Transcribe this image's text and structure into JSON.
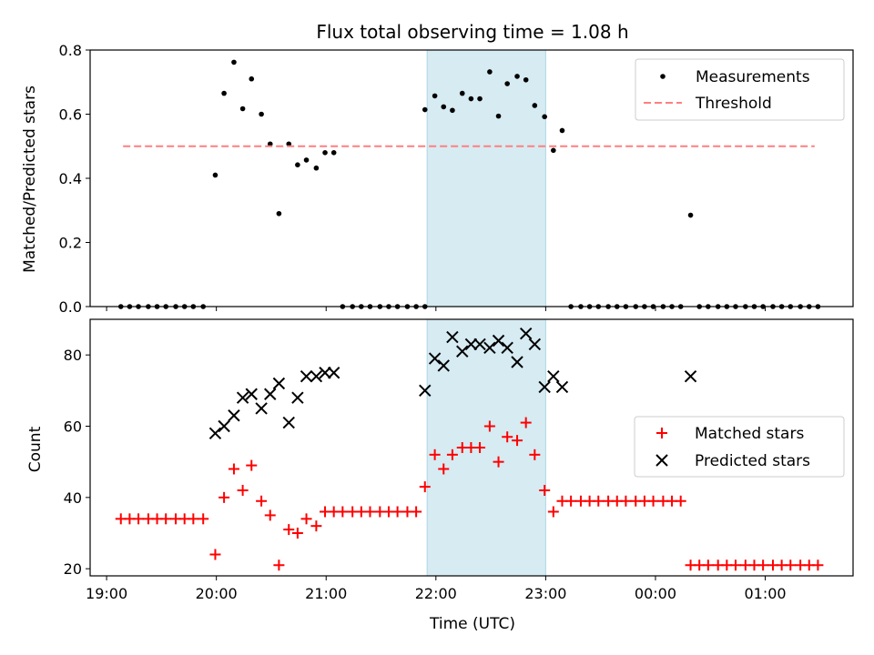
{
  "chart_data": {
    "type": "scatter",
    "title": "Flux total observing time = 1.08 h",
    "xlabel": "Time (UTC)",
    "x_unit": "hours UTC (times after midnight written as 24+h)",
    "x_range": [
      18.85,
      25.8
    ],
    "x_tick_values": [
      19,
      20,
      21,
      22,
      23,
      24,
      25
    ],
    "x_tick_labels": [
      "19:00",
      "20:00",
      "21:00",
      "22:00",
      "23:00",
      "00:00",
      "01:00"
    ],
    "highlight_span": {
      "start": 21.92,
      "end": 23.0,
      "color": "#add8e6",
      "opacity": 0.5
    },
    "panels": [
      {
        "ylabel": "Matched/Predicted stars",
        "ylim": [
          0,
          0.8
        ],
        "y_tick_values": [
          0.0,
          0.2,
          0.4,
          0.6,
          0.8
        ],
        "y_tick_labels": [
          "0.0",
          "0.2",
          "0.4",
          "0.6",
          "0.8"
        ],
        "legend_position": "top-right",
        "series": [
          {
            "name": "Measurements",
            "kind": "dot",
            "color": "#000000",
            "points": [
              [
                19.13,
                0.0
              ],
              [
                19.21,
                0.0
              ],
              [
                19.29,
                0.0
              ],
              [
                19.38,
                0.0
              ],
              [
                19.46,
                0.0
              ],
              [
                19.54,
                0.0
              ],
              [
                19.63,
                0.0
              ],
              [
                19.71,
                0.0
              ],
              [
                19.79,
                0.0
              ],
              [
                19.88,
                0.0
              ],
              [
                19.99,
                0.41
              ],
              [
                20.07,
                0.665
              ],
              [
                20.16,
                0.762
              ],
              [
                20.24,
                0.617
              ],
              [
                20.32,
                0.71
              ],
              [
                20.41,
                0.6
              ],
              [
                20.49,
                0.507
              ],
              [
                20.57,
                0.29
              ],
              [
                20.66,
                0.507
              ],
              [
                20.74,
                0.442
              ],
              [
                20.82,
                0.457
              ],
              [
                20.91,
                0.432
              ],
              [
                20.99,
                0.48
              ],
              [
                21.07,
                0.48
              ],
              [
                21.15,
                0.0
              ],
              [
                21.24,
                0.0
              ],
              [
                21.32,
                0.0
              ],
              [
                21.4,
                0.0
              ],
              [
                21.49,
                0.0
              ],
              [
                21.57,
                0.0
              ],
              [
                21.65,
                0.0
              ],
              [
                21.74,
                0.0
              ],
              [
                21.82,
                0.0
              ],
              [
                21.9,
                0.0
              ],
              [
                21.9,
                0.614
              ],
              [
                21.99,
                0.657
              ],
              [
                22.07,
                0.623
              ],
              [
                22.15,
                0.612
              ],
              [
                22.24,
                0.665
              ],
              [
                22.32,
                0.648
              ],
              [
                22.4,
                0.648
              ],
              [
                22.49,
                0.732
              ],
              [
                22.57,
                0.594
              ],
              [
                22.65,
                0.695
              ],
              [
                22.74,
                0.718
              ],
              [
                22.82,
                0.707
              ],
              [
                22.9,
                0.627
              ],
              [
                22.99,
                0.592
              ],
              [
                23.07,
                0.487
              ],
              [
                23.15,
                0.549
              ],
              [
                23.23,
                0.0
              ],
              [
                23.32,
                0.0
              ],
              [
                23.4,
                0.0
              ],
              [
                23.48,
                0.0
              ],
              [
                23.57,
                0.0
              ],
              [
                23.65,
                0.0
              ],
              [
                23.73,
                0.0
              ],
              [
                23.82,
                0.0
              ],
              [
                23.9,
                0.0
              ],
              [
                23.98,
                0.0
              ],
              [
                24.07,
                0.0
              ],
              [
                24.15,
                0.0
              ],
              [
                24.23,
                0.0
              ],
              [
                24.32,
                0.285
              ],
              [
                24.4,
                0.0
              ],
              [
                24.48,
                0.0
              ],
              [
                24.57,
                0.0
              ],
              [
                24.65,
                0.0
              ],
              [
                24.73,
                0.0
              ],
              [
                24.82,
                0.0
              ],
              [
                24.9,
                0.0
              ],
              [
                24.98,
                0.0
              ],
              [
                25.07,
                0.0
              ],
              [
                25.15,
                0.0
              ],
              [
                25.23,
                0.0
              ],
              [
                25.32,
                0.0
              ],
              [
                25.4,
                0.0
              ],
              [
                25.48,
                0.0
              ]
            ]
          },
          {
            "name": "Threshold",
            "kind": "dashed-line",
            "color": "#ff7f7f",
            "points": [
              [
                19.15,
                0.5
              ],
              [
                25.45,
                0.5
              ]
            ]
          }
        ]
      },
      {
        "ylabel": "Count",
        "ylim": [
          18,
          90
        ],
        "y_tick_values": [
          20,
          40,
          60,
          80
        ],
        "y_tick_labels": [
          "20",
          "40",
          "60",
          "80"
        ],
        "legend_position": "center-right",
        "series": [
          {
            "name": "Matched stars",
            "kind": "plus",
            "color": "#ff0000",
            "points": [
              [
                19.13,
                34
              ],
              [
                19.21,
                34
              ],
              [
                19.29,
                34
              ],
              [
                19.38,
                34
              ],
              [
                19.46,
                34
              ],
              [
                19.54,
                34
              ],
              [
                19.63,
                34
              ],
              [
                19.71,
                34
              ],
              [
                19.79,
                34
              ],
              [
                19.88,
                34
              ],
              [
                19.99,
                24
              ],
              [
                20.07,
                40
              ],
              [
                20.16,
                48
              ],
              [
                20.24,
                42
              ],
              [
                20.32,
                49
              ],
              [
                20.41,
                39
              ],
              [
                20.49,
                35
              ],
              [
                20.57,
                21
              ],
              [
                20.66,
                31
              ],
              [
                20.74,
                30
              ],
              [
                20.82,
                34
              ],
              [
                20.91,
                32
              ],
              [
                20.99,
                36
              ],
              [
                21.07,
                36
              ],
              [
                21.15,
                36
              ],
              [
                21.24,
                36
              ],
              [
                21.32,
                36
              ],
              [
                21.4,
                36
              ],
              [
                21.49,
                36
              ],
              [
                21.57,
                36
              ],
              [
                21.65,
                36
              ],
              [
                21.74,
                36
              ],
              [
                21.82,
                36
              ],
              [
                21.9,
                43
              ],
              [
                21.99,
                52
              ],
              [
                22.07,
                48
              ],
              [
                22.15,
                52
              ],
              [
                22.24,
                54
              ],
              [
                22.32,
                54
              ],
              [
                22.4,
                54
              ],
              [
                22.49,
                60
              ],
              [
                22.57,
                50
              ],
              [
                22.65,
                57
              ],
              [
                22.74,
                56
              ],
              [
                22.82,
                61
              ],
              [
                22.9,
                52
              ],
              [
                22.99,
                42
              ],
              [
                23.07,
                36
              ],
              [
                23.15,
                39
              ],
              [
                23.23,
                39
              ],
              [
                23.32,
                39
              ],
              [
                23.4,
                39
              ],
              [
                23.48,
                39
              ],
              [
                23.57,
                39
              ],
              [
                23.65,
                39
              ],
              [
                23.73,
                39
              ],
              [
                23.82,
                39
              ],
              [
                23.9,
                39
              ],
              [
                23.98,
                39
              ],
              [
                24.07,
                39
              ],
              [
                24.15,
                39
              ],
              [
                24.23,
                39
              ],
              [
                24.32,
                21
              ],
              [
                24.4,
                21
              ],
              [
                24.48,
                21
              ],
              [
                24.57,
                21
              ],
              [
                24.65,
                21
              ],
              [
                24.73,
                21
              ],
              [
                24.82,
                21
              ],
              [
                24.9,
                21
              ],
              [
                24.98,
                21
              ],
              [
                25.07,
                21
              ],
              [
                25.15,
                21
              ],
              [
                25.23,
                21
              ],
              [
                25.32,
                21
              ],
              [
                25.4,
                21
              ],
              [
                25.48,
                21
              ]
            ]
          },
          {
            "name": "Predicted stars",
            "kind": "cross",
            "color": "#000000",
            "points": [
              [
                19.99,
                58
              ],
              [
                20.07,
                60
              ],
              [
                20.16,
                63
              ],
              [
                20.24,
                68
              ],
              [
                20.32,
                69
              ],
              [
                20.41,
                65
              ],
              [
                20.49,
                69
              ],
              [
                20.57,
                72
              ],
              [
                20.66,
                61
              ],
              [
                20.74,
                68
              ],
              [
                20.82,
                74
              ],
              [
                20.91,
                74
              ],
              [
                20.99,
                75
              ],
              [
                21.07,
                75
              ],
              [
                21.9,
                70
              ],
              [
                21.99,
                79
              ],
              [
                22.07,
                77
              ],
              [
                22.15,
                85
              ],
              [
                22.24,
                81
              ],
              [
                22.32,
                83
              ],
              [
                22.4,
                83
              ],
              [
                22.49,
                82
              ],
              [
                22.57,
                84
              ],
              [
                22.65,
                82
              ],
              [
                22.74,
                78
              ],
              [
                22.82,
                86
              ],
              [
                22.9,
                83
              ],
              [
                22.99,
                71
              ],
              [
                23.07,
                74
              ],
              [
                23.15,
                71
              ],
              [
                24.32,
                74
              ]
            ]
          }
        ]
      }
    ]
  }
}
